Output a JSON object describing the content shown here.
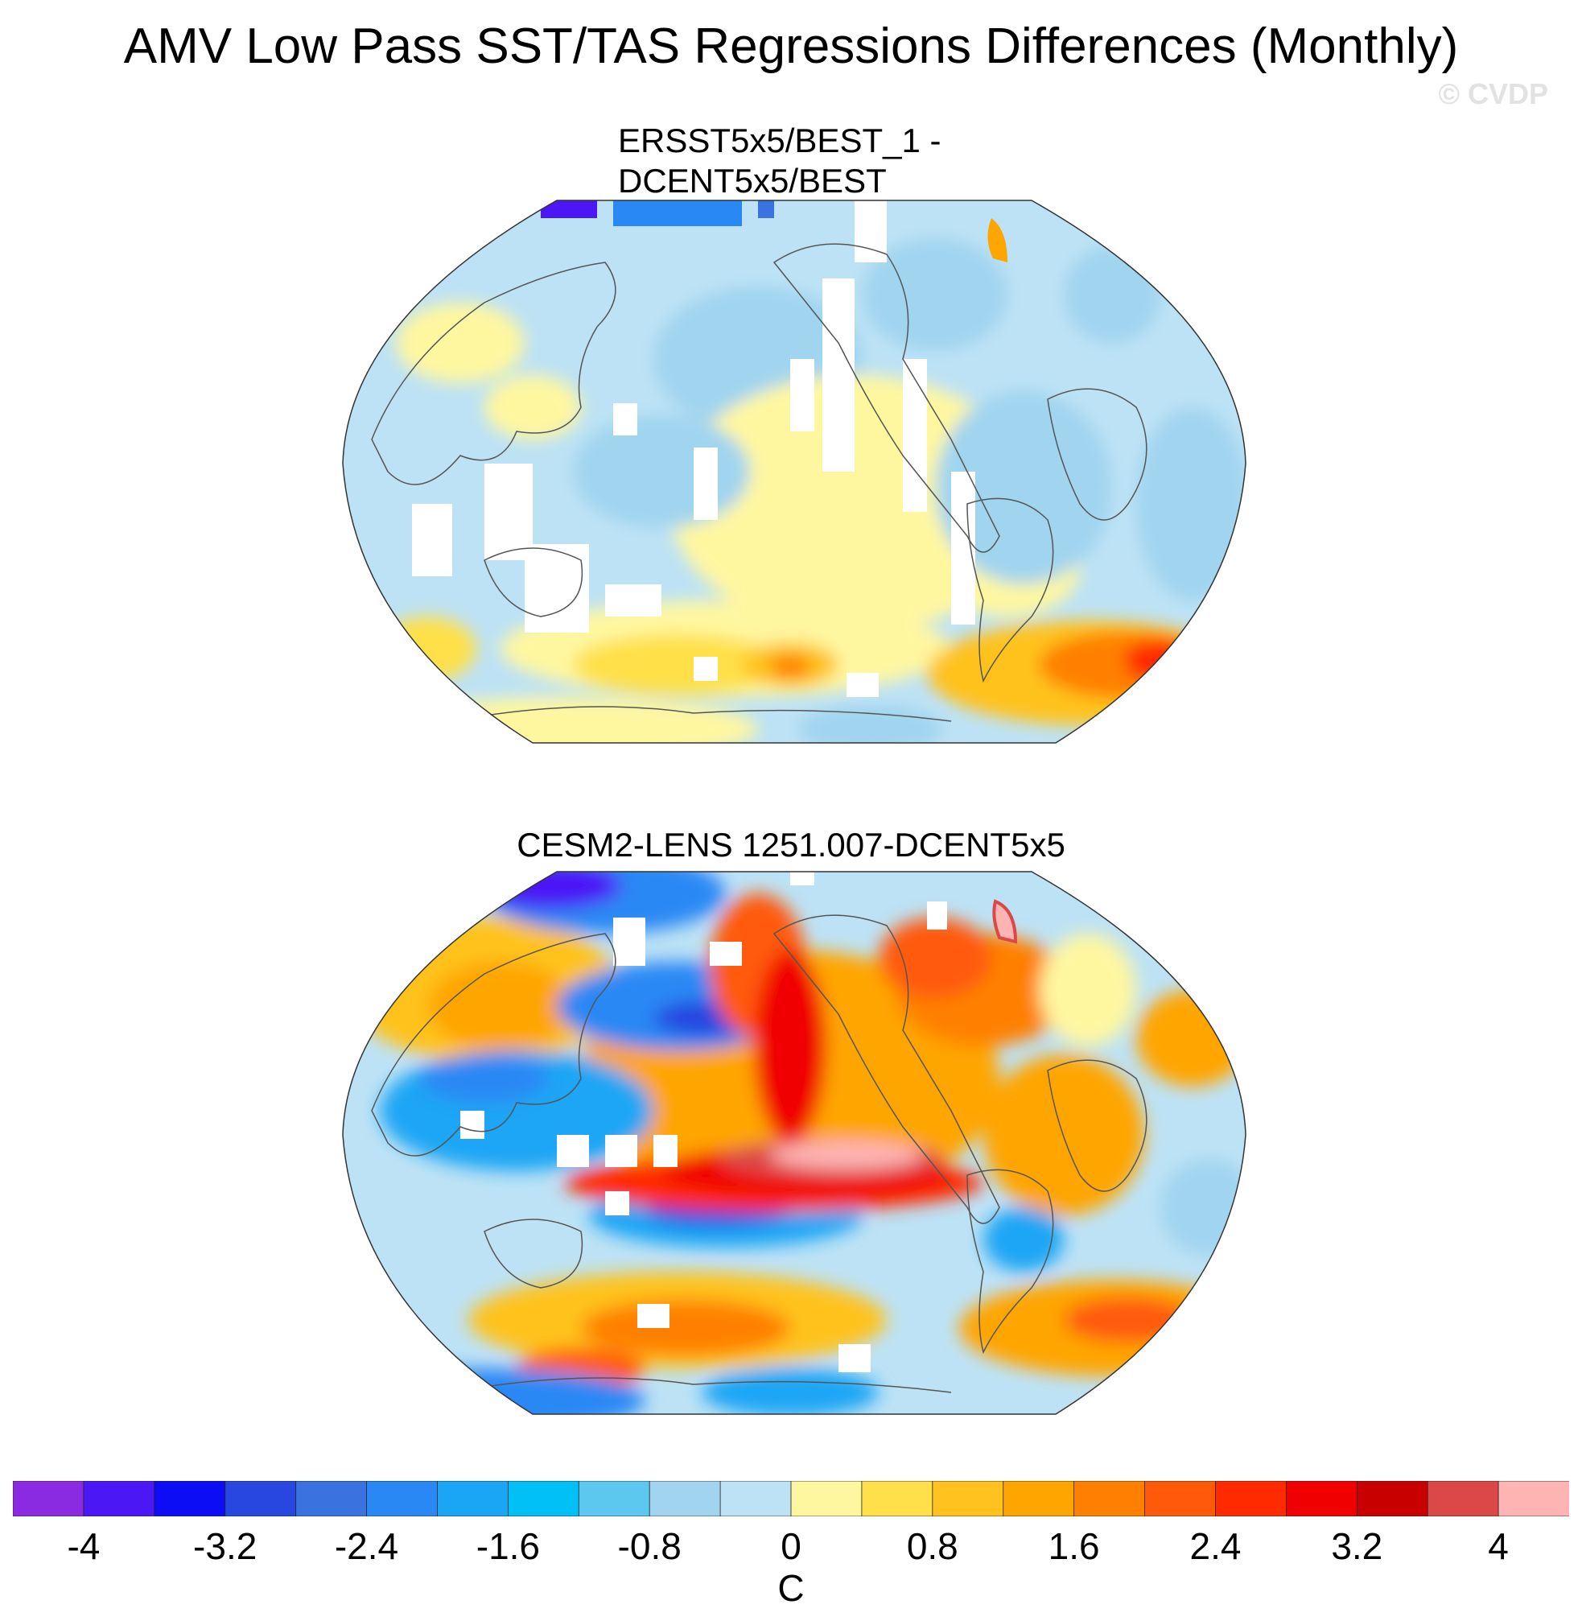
{
  "title": "AMV Low Pass SST/TAS Regressions Differences (Monthly)",
  "watermark": "© CVDP",
  "panels": [
    {
      "title_line1": "ERSST5x5/BEST_1 -",
      "title_line2": "DCENT5x5/BEST"
    },
    {
      "title": "CESM2-LENS 1251.007-DCENT5x5"
    }
  ],
  "colorbar": {
    "unit": "C",
    "levels": [
      -4,
      -3.6,
      -3.2,
      -2.8,
      -2.4,
      -2.0,
      -1.6,
      -1.2,
      -0.8,
      -0.4,
      0,
      0.4,
      0.8,
      1.2,
      1.6,
      2.0,
      2.4,
      2.8,
      3.2,
      3.6,
      4
    ],
    "labels": [
      "-4",
      "-3.2",
      "-2.4",
      "-1.6",
      "-0.8",
      "0",
      "0.8",
      "1.6",
      "2.4",
      "3.2",
      "4"
    ],
    "colors": [
      "#8a2be2",
      "#4b18f5",
      "#0c0cf5",
      "#2747e0",
      "#3a72e0",
      "#2a88f5",
      "#1aa6f5",
      "#00c0f5",
      "#5cc8f0",
      "#a0d4ef",
      "#bde2f5",
      "#fff7a0",
      "#ffe04a",
      "#ffc21e",
      "#ffa500",
      "#ff8000",
      "#ff5a0a",
      "#ff2a00",
      "#f00000",
      "#c80000",
      "#dc4848",
      "#ffb4b4"
    ]
  }
}
